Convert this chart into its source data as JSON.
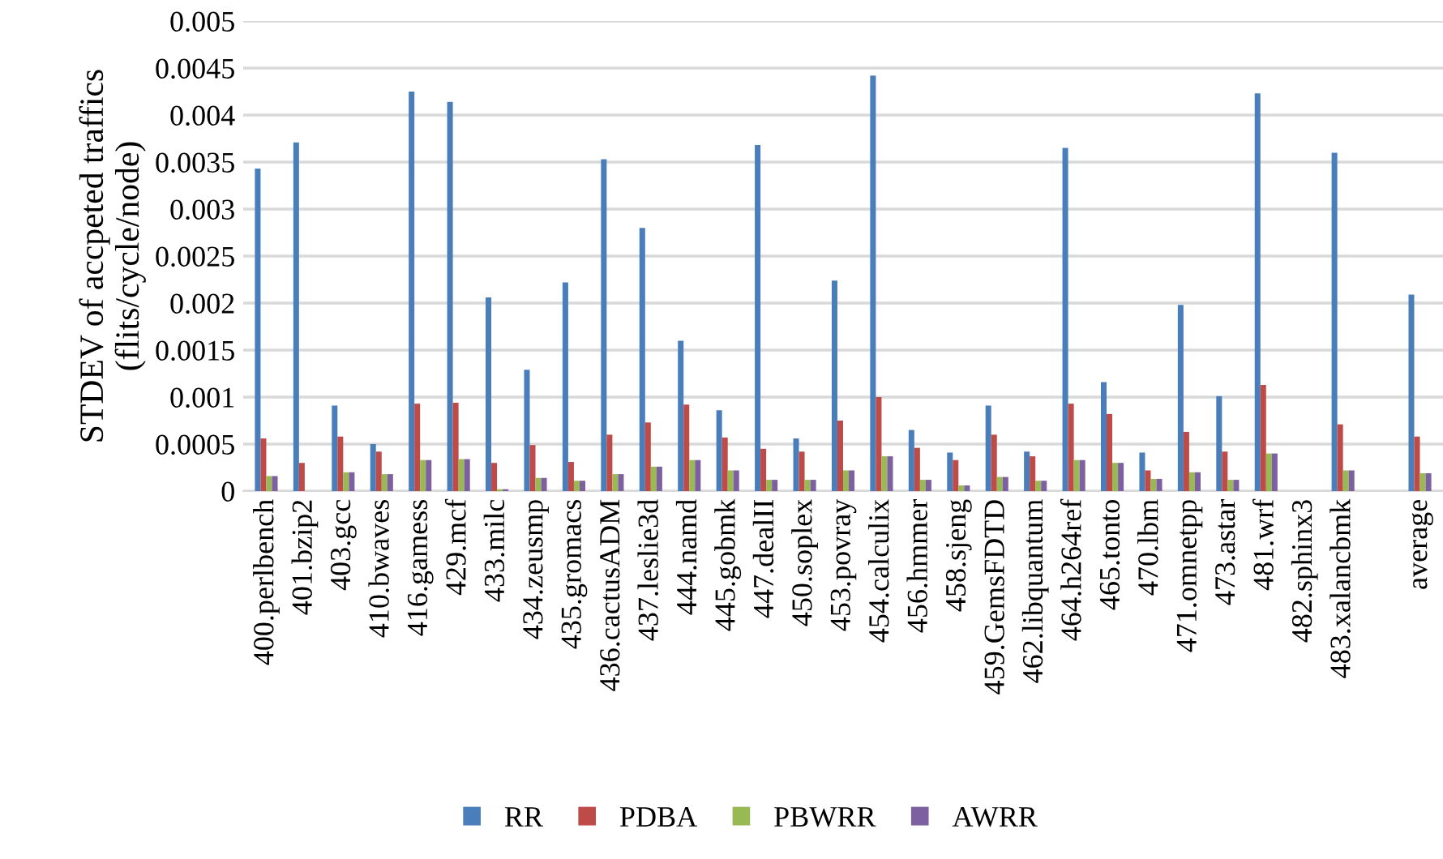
{
  "chart_data": {
    "type": "bar",
    "ylabel": "STDEV of accpeted traffics\n(flits/cycle/node)",
    "categories": [
      "400.perlbench",
      "401.bzip2",
      "403.gcc",
      "410.bwaves",
      "416.gamess",
      "429.mcf",
      "433.milc",
      "434.zeusmp",
      "435.gromacs",
      "436.cactusADM",
      "437.leslie3d",
      "444.namd",
      "445.gobmk",
      "447.dealII",
      "450.soplex",
      "453.povray",
      "454.calculix",
      "456.hmmer",
      "458.sjeng",
      "459.GemsFDTD",
      "462.libquantum",
      "464.h264ref",
      "465.tonto",
      "470.lbm",
      "471.omnetpp",
      "473.astar",
      "481.wrf",
      "482.sphinx3",
      "483.xalancbmk",
      null,
      "average"
    ],
    "series": [
      {
        "name": "RR",
        "color": "#4a7ebb",
        "values": [
          0.00343,
          0.00371,
          0.00091,
          0.0005,
          0.00425,
          0.00414,
          0.00206,
          0.00129,
          0.00222,
          0.00353,
          0.0028,
          0.0016,
          0.00086,
          0.00368,
          0.00056,
          0.00224,
          0.00442,
          0.00065,
          0.00041,
          0.00091,
          0.00042,
          0.00365,
          0.00116,
          0.00041,
          0.00198,
          0.00101,
          0.00423,
          0,
          0.0036,
          null,
          0.00209
        ]
      },
      {
        "name": "PDBA",
        "color": "#be4b48",
        "values": [
          0.00056,
          0.0003,
          0.00058,
          0.00042,
          0.00093,
          0.00094,
          0.0003,
          0.00049,
          0.00031,
          0.0006,
          0.00073,
          0.00092,
          0.00057,
          0.00045,
          0.00042,
          0.00075,
          0.001,
          0.00046,
          0.00033,
          0.0006,
          0.00037,
          0.00093,
          0.00082,
          0.00022,
          0.00063,
          0.00042,
          0.00113,
          0,
          0.00071,
          null,
          0.00058
        ]
      },
      {
        "name": "PBWRR",
        "color": "#98b954",
        "values": [
          0.00016,
          0,
          0.0002,
          0.00018,
          0.00033,
          0.00034,
          2e-05,
          0.00014,
          0.00011,
          0.00018,
          0.00026,
          0.00033,
          0.00022,
          0.00012,
          0.00012,
          0.00022,
          0.00037,
          0.00012,
          6e-05,
          0.00015,
          0.00011,
          0.00033,
          0.0003,
          0.00013,
          0.0002,
          0.00012,
          0.0004,
          0,
          0.00022,
          null,
          0.00019
        ]
      },
      {
        "name": "AWRR",
        "color": "#7d60a0",
        "values": [
          0.00016,
          0,
          0.0002,
          0.00018,
          0.00033,
          0.00034,
          2e-05,
          0.00014,
          0.00011,
          0.00018,
          0.00026,
          0.00033,
          0.00022,
          0.00012,
          0.00012,
          0.00022,
          0.00037,
          0.00012,
          6e-05,
          0.00015,
          0.00011,
          0.00033,
          0.0003,
          0.00013,
          0.0002,
          0.00012,
          0.0004,
          0,
          0.00022,
          null,
          0.00019
        ]
      }
    ],
    "ylim": [
      0,
      0.005
    ],
    "yticks": [
      0,
      {
        "value": 0.0005,
        "label": "0.0005"
      },
      {
        "value": 0.001,
        "label": "0.001"
      },
      {
        "value": 0.0015,
        "label": "0.0015"
      },
      {
        "value": 0.002,
        "label": "0.002"
      },
      {
        "value": 0.0025,
        "label": "0.0025"
      },
      {
        "value": 0.003,
        "label": "0.003"
      },
      {
        "value": 0.0035,
        "label": "0.0035"
      },
      {
        "value": 0.004,
        "label": "0.004"
      },
      {
        "value": 0.0045,
        "label": "0.0045"
      },
      {
        "value": 0.005,
        "label": "0.005"
      }
    ],
    "grid": "y",
    "legend": "bottom"
  }
}
